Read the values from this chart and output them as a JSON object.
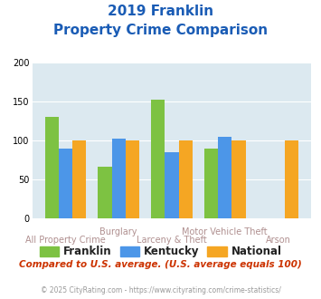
{
  "title_line1": "2019 Franklin",
  "title_line2": "Property Crime Comparison",
  "series": {
    "Franklin": [
      130,
      66,
      152,
      90,
      0
    ],
    "Kentucky": [
      90,
      102,
      85,
      105,
      0
    ],
    "National": [
      100,
      100,
      100,
      100,
      100
    ]
  },
  "colors": {
    "Franklin": "#7dc242",
    "Kentucky": "#4c96e8",
    "National": "#f5a623"
  },
  "ylim": [
    0,
    200
  ],
  "yticks": [
    0,
    50,
    100,
    150,
    200
  ],
  "bg_color": "#dce9f0",
  "title_color": "#1a5cb5",
  "xlabel_color_top": "#b09090",
  "xlabel_color_bot": "#b09090",
  "legend_label_color": "#222222",
  "footer_color": "#999999",
  "compare_text": "Compared to U.S. average. (U.S. average equals 100)",
  "compare_color": "#cc3300",
  "footer_text": "© 2025 CityRating.com - https://www.cityrating.com/crime-statistics/",
  "title_fontsize": 11,
  "ytick_fontsize": 7,
  "xtick_fontsize": 7,
  "legend_fontsize": 8.5,
  "compare_fontsize": 7.5,
  "footer_fontsize": 5.5,
  "n_groups": 5,
  "top_labels": [
    "",
    "Burglary",
    "",
    "Motor Vehicle Theft",
    ""
  ],
  "bot_labels": [
    "All Property Crime",
    "",
    "Larceny & Theft",
    "",
    "Arson"
  ]
}
